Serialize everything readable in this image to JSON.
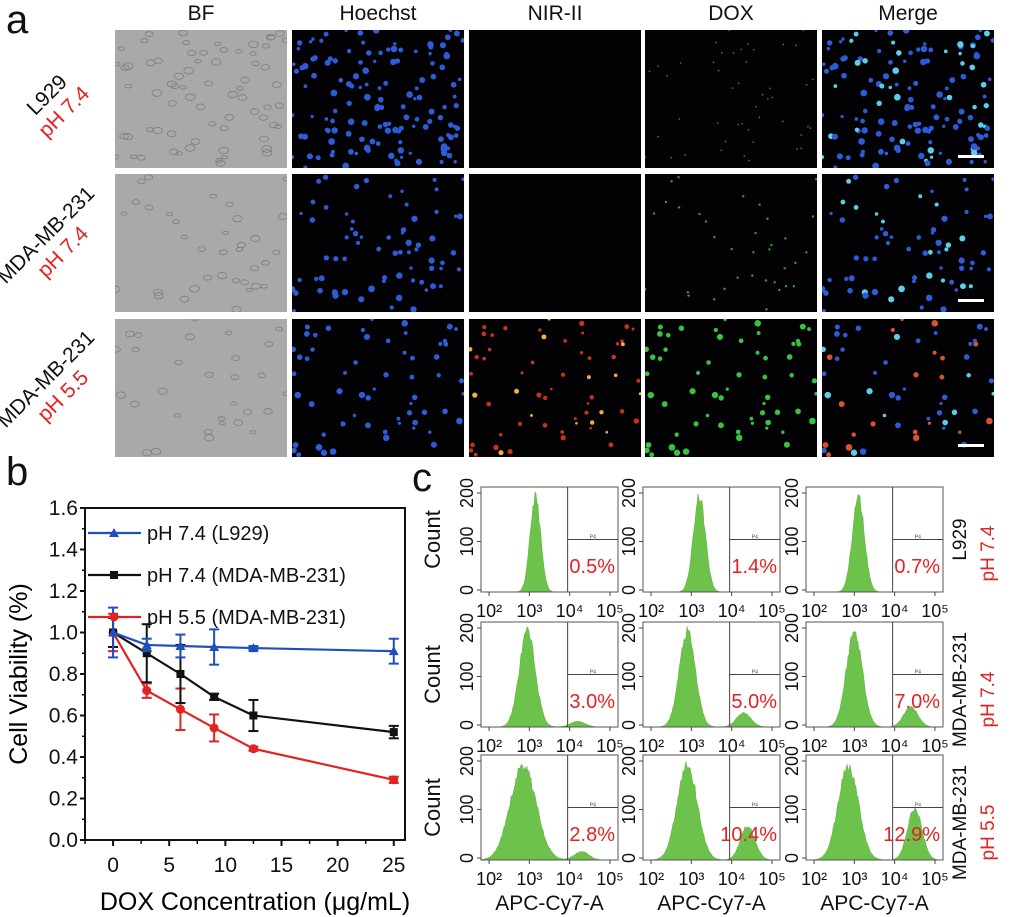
{
  "panels": {
    "a": {
      "letter": "a",
      "columns": [
        "BF",
        "Hoechst",
        "NIR-II",
        "DOX",
        "Merge"
      ],
      "rows": [
        {
          "cell": "L929",
          "ph": "pH 7.4"
        },
        {
          "cell": "MDA-MB-231",
          "ph": "pH 7.4"
        },
        {
          "cell": "MDA-MB-231",
          "ph": "pH 5.5"
        }
      ]
    },
    "b": {
      "letter": "b"
    },
    "c": {
      "letter": "c",
      "ylabel": "Count",
      "xlabel": "APC-Cy7-A",
      "yticks": [
        "0",
        "100",
        "200"
      ],
      "xticks": [
        "10²",
        "10³",
        "10⁴",
        "10⁵"
      ],
      "gate_label": "P4",
      "rows": [
        {
          "cell": "L929",
          "ph": "pH 7.4",
          "percents": [
            "0.5%",
            "1.4%",
            "0.7%"
          ]
        },
        {
          "cell": "MDA-MB-231",
          "ph": "pH 7.4",
          "percents": [
            "3.0%",
            "5.0%",
            "7.0%"
          ]
        },
        {
          "cell": "MDA-MB-231",
          "ph": "pH 5.5",
          "percents": [
            "2.8%",
            "10.4%",
            "12.9%"
          ]
        }
      ]
    }
  },
  "colors": {
    "blue": "#1f4fbf",
    "black": "#111111",
    "red": "#e32222",
    "green": "#6cc24a",
    "label_red": "#e32222"
  },
  "chart_data": {
    "type": "line",
    "title": "",
    "xlabel": "DOX Concentration (μg/mL)",
    "ylabel": "Cell Viability (%)",
    "xlim": [
      -2.5,
      26
    ],
    "ylim": [
      0,
      1.6
    ],
    "xticks": [
      0,
      5,
      10,
      15,
      20,
      25
    ],
    "yticks": [
      0.0,
      0.2,
      0.4,
      0.6,
      0.8,
      1.0,
      1.2,
      1.4,
      1.6
    ],
    "ytick_labels": [
      "0.0",
      "0.2",
      "0.4",
      "0.6",
      "0.8",
      "1.0",
      "1.2",
      "1.4",
      "1.6"
    ],
    "grid": false,
    "legend_position": "top-left",
    "x": [
      0,
      3,
      6,
      9,
      12.5,
      25
    ],
    "series": [
      {
        "name": "pH 7.4 (L929)",
        "color": "#1f4fbf",
        "marker": "triangle",
        "values": [
          1.0,
          0.94,
          0.935,
          0.93,
          0.925,
          0.91
        ],
        "errors": [
          0.12,
          0.03,
          0.055,
          0.085,
          0.01,
          0.06
        ]
      },
      {
        "name": "pH 7.4 (MDA-MB-231)",
        "color": "#111111",
        "marker": "square",
        "values": [
          1.0,
          0.9,
          0.8,
          0.69,
          0.6,
          0.52
        ],
        "errors": [
          0.07,
          0.14,
          0.14,
          0.015,
          0.075,
          0.03
        ]
      },
      {
        "name": "pH 5.5 (MDA-MB-231)",
        "color": "#e32222",
        "marker": "circle",
        "values": [
          1.0,
          0.72,
          0.63,
          0.54,
          0.44,
          0.29
        ],
        "errors": [
          0.09,
          0.035,
          0.1,
          0.065,
          0.01,
          0.015
        ]
      }
    ]
  }
}
